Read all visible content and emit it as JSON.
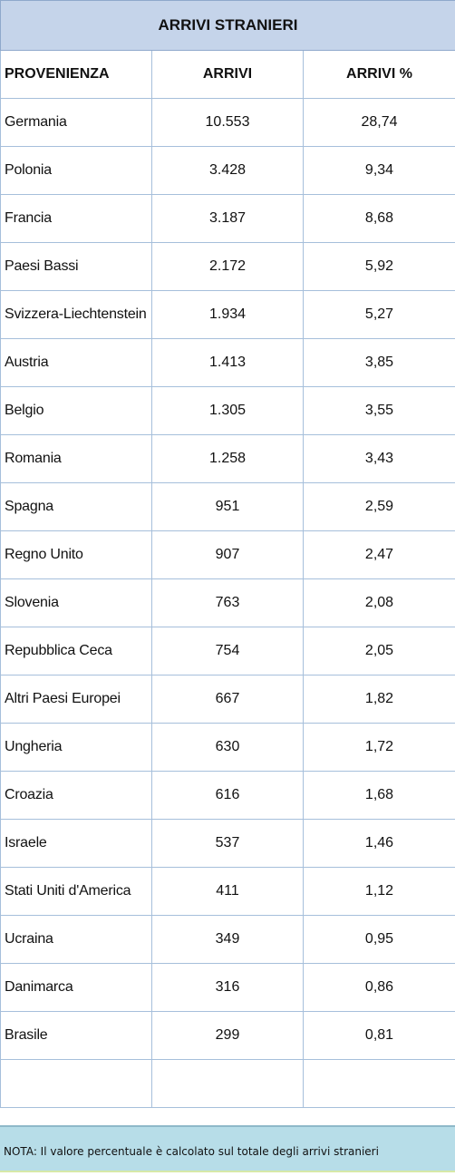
{
  "title": "ARRIVI STRANIERI",
  "headers": {
    "origin": "PROVENIENZA",
    "arrivals": "ARRIVI",
    "percent": "ARRIVI %"
  },
  "rows": [
    {
      "origin": "Germania",
      "arrivals": "10.553",
      "percent": "28,74"
    },
    {
      "origin": "Polonia",
      "arrivals": "3.428",
      "percent": "9,34"
    },
    {
      "origin": "Francia",
      "arrivals": "3.187",
      "percent": "8,68"
    },
    {
      "origin": "Paesi Bassi",
      "arrivals": "2.172",
      "percent": "5,92"
    },
    {
      "origin": "Svizzera-Liechtenstein",
      "arrivals": "1.934",
      "percent": "5,27"
    },
    {
      "origin": "Austria",
      "arrivals": "1.413",
      "percent": "3,85"
    },
    {
      "origin": "Belgio",
      "arrivals": "1.305",
      "percent": "3,55"
    },
    {
      "origin": "Romania",
      "arrivals": "1.258",
      "percent": "3,43"
    },
    {
      "origin": "Spagna",
      "arrivals": "951",
      "percent": "2,59"
    },
    {
      "origin": "Regno Unito",
      "arrivals": "907",
      "percent": "2,47"
    },
    {
      "origin": "Slovenia",
      "arrivals": "763",
      "percent": "2,08"
    },
    {
      "origin": "Repubblica Ceca",
      "arrivals": "754",
      "percent": "2,05"
    },
    {
      "origin": "Altri Paesi Europei",
      "arrivals": "667",
      "percent": "1,82"
    },
    {
      "origin": "Ungheria",
      "arrivals": "630",
      "percent": "1,72"
    },
    {
      "origin": "Croazia",
      "arrivals": "616",
      "percent": "1,68"
    },
    {
      "origin": "Israele",
      "arrivals": "537",
      "percent": "1,46"
    },
    {
      "origin": "Stati Uniti d'America",
      "arrivals": "411",
      "percent": "1,12"
    },
    {
      "origin": "Ucraina",
      "arrivals": "349",
      "percent": "0,95"
    },
    {
      "origin": "Danimarca",
      "arrivals": "316",
      "percent": "0,86"
    },
    {
      "origin": "Brasile",
      "arrivals": "299",
      "percent": "0,81"
    }
  ],
  "note": "NOTA: Il valore percentuale è calcolato sul totale degli arrivi stranieri",
  "colors": {
    "title_bg": "#c5d4ea",
    "grid_line": "#a6bfdb",
    "note_bg": "#b7dde8"
  }
}
